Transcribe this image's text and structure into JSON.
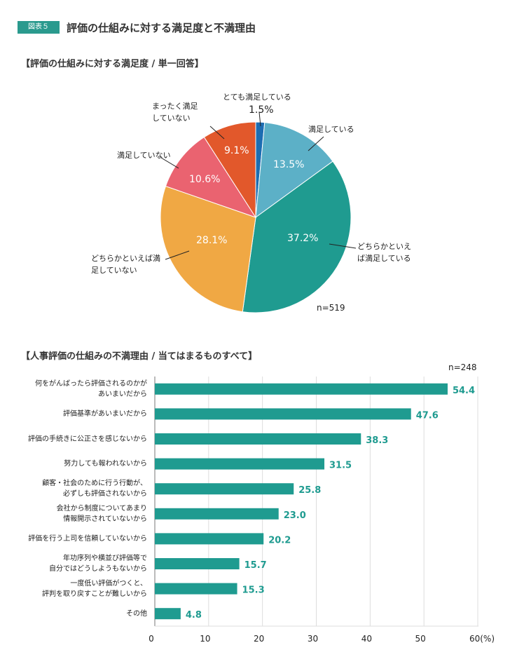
{
  "header": {
    "badge": "図表５",
    "title": "評価の仕組みに対する満足度と不満理由"
  },
  "chart_data": [
    {
      "type": "pie",
      "title": "【評価の仕組みに対する満足度 / 単一回答】",
      "n_label": "n=519",
      "slices": [
        {
          "label": "とても満足している",
          "value": 1.5,
          "display": "1.5%",
          "color": "#1c6db2"
        },
        {
          "label": "満足している",
          "value": 13.5,
          "display": "13.5%",
          "color": "#5cb0c7"
        },
        {
          "label": "どちらかといえば満足している",
          "value": 37.2,
          "display": "37.2%",
          "color": "#1f9b90"
        },
        {
          "label": "どちらかといえば満足していない",
          "value": 28.1,
          "display": "28.1%",
          "color": "#f0a844"
        },
        {
          "label": "満足していない",
          "value": 10.6,
          "display": "10.6%",
          "color": "#ea6370"
        },
        {
          "label": "まったく満足していない",
          "value": 9.1,
          "display": "9.1%",
          "color": "#e2582b"
        }
      ]
    },
    {
      "type": "bar",
      "orientation": "horizontal",
      "title": "【人事評価の仕組みの不満理由 / 当てはまるものすべて】",
      "n_label": "n=248",
      "color": "#1f9b90",
      "xlim": [
        0,
        60
      ],
      "xticks": [
        "0",
        "10",
        "20",
        "30",
        "40",
        "50",
        "60(%)"
      ],
      "categories": [
        [
          "何をがんばったら評価されるのかが",
          "あいまいだから"
        ],
        [
          "評価基準があいまいだから"
        ],
        [
          "評価の手続きに公正さを感じないから"
        ],
        [
          "努力しても報われないから"
        ],
        [
          "顧客・社会のために行う行動が、",
          "必ずしも評価されないから"
        ],
        [
          "会社から制度についてあまり",
          "情報開示されていないから"
        ],
        [
          "評価を行う上司を信頼していないから"
        ],
        [
          "年功序列や横並び評価等で",
          "自分ではどうしようもないから"
        ],
        [
          "一度低い評価がつくと、",
          "評判を取り戻すことが難しいから"
        ],
        [
          "その他"
        ]
      ],
      "values": [
        54.4,
        47.6,
        38.3,
        31.5,
        25.8,
        23.0,
        20.2,
        15.7,
        15.3,
        4.8
      ],
      "value_labels": [
        "54.4",
        "47.6",
        "38.3",
        "31.5",
        "25.8",
        "23.0",
        "20.2",
        "15.7",
        "15.3",
        "4.8"
      ]
    }
  ]
}
